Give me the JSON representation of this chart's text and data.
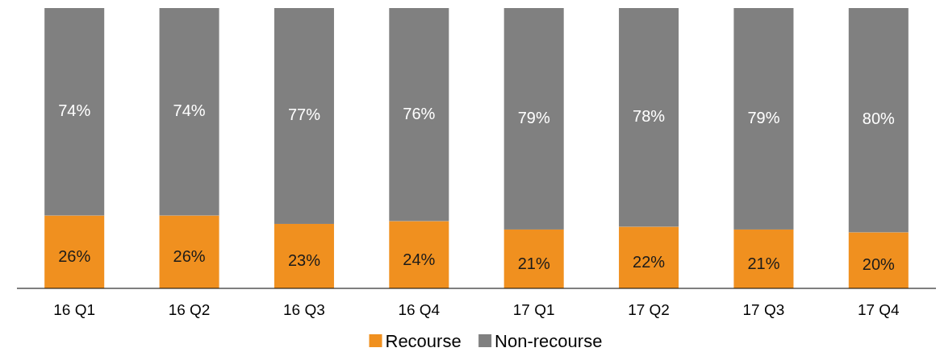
{
  "chart_data": {
    "type": "bar",
    "stacked": true,
    "categories": [
      "16 Q1",
      "16 Q2",
      "16 Q3",
      "16 Q4",
      "17 Q1",
      "17 Q2",
      "17 Q3",
      "17 Q4"
    ],
    "series": [
      {
        "name": "Recourse",
        "color": "#f0901f",
        "values": [
          26,
          26,
          23,
          24,
          21,
          22,
          21,
          20
        ],
        "value_labels": [
          "26%",
          "26%",
          "23%",
          "24%",
          "21%",
          "22%",
          "21%",
          "20%"
        ]
      },
      {
        "name": "Non-recourse",
        "color": "#808080",
        "values": [
          74,
          74,
          77,
          76,
          79,
          78,
          79,
          80
        ],
        "value_labels": [
          "74%",
          "74%",
          "77%",
          "76%",
          "79%",
          "78%",
          "79%",
          "80%"
        ]
      }
    ],
    "legend": "bottom",
    "tick_labels": "x"
  }
}
